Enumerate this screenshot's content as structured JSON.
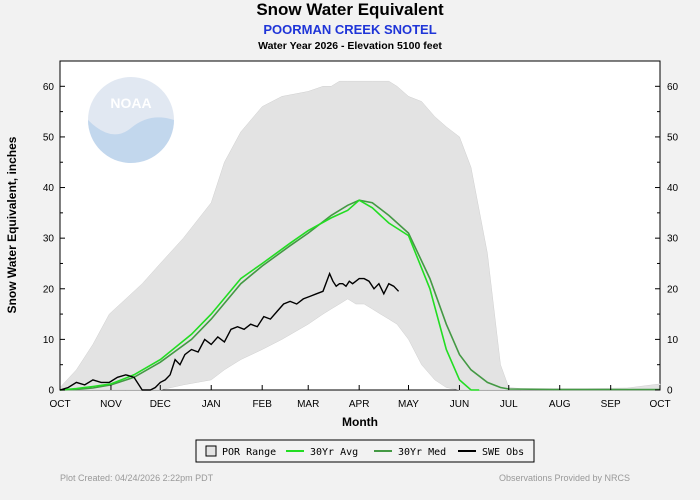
{
  "header": {
    "title": "Snow Water Equivalent",
    "station": "POORMAN CREEK SNOTEL",
    "subtitle": "Water Year 2026 -  Elevation 5100 feet"
  },
  "logo_text": "NOAA",
  "footer": {
    "left": "Plot Created: 04/24/2026 2:22pm PDT",
    "right": "Observations Provided by NRCS"
  },
  "colors": {
    "por_fill": "#e3e3e3",
    "avg": "#22dd22",
    "med": "#449944",
    "obs": "#000000"
  },
  "chart_data": {
    "type": "line",
    "xlabel": "Month",
    "ylabel": "Snow Water Equivalent, inches",
    "ylim": [
      0,
      65
    ],
    "yticks": [
      0,
      10,
      20,
      30,
      40,
      50,
      60
    ],
    "xlim_days": [
      0,
      365
    ],
    "months": [
      "OCT",
      "NOV",
      "DEC",
      "JAN",
      "FEB",
      "MAR",
      "APR",
      "MAY",
      "JUN",
      "JUL",
      "AUG",
      "SEP",
      "OCT"
    ],
    "month_days": [
      0,
      31,
      61,
      92,
      123,
      151,
      182,
      212,
      243,
      273,
      304,
      335,
      365
    ],
    "grid": false,
    "legend_position": "bottom",
    "legend": [
      "POR Range",
      "30Yr Avg",
      "30Yr Med",
      "SWE Obs"
    ],
    "por_range": {
      "days": [
        0,
        10,
        20,
        30,
        40,
        50,
        61,
        75,
        92,
        100,
        110,
        123,
        135,
        151,
        160,
        165,
        170,
        175,
        180,
        185,
        190,
        195,
        200,
        205,
        212,
        220,
        228,
        235,
        243,
        250,
        260,
        268,
        273,
        280,
        300,
        320,
        345,
        365
      ],
      "max": [
        0.5,
        4,
        9,
        15,
        18,
        21,
        25,
        30,
        37,
        45,
        51,
        56,
        58,
        59,
        60,
        60,
        61,
        61,
        61,
        61,
        61,
        61,
        61,
        60,
        58,
        57,
        54,
        52,
        50,
        44,
        27,
        5,
        0.5,
        0.3,
        0.3,
        0.3,
        0.4,
        1.2
      ],
      "min": [
        0,
        0,
        0,
        0,
        0,
        0,
        0,
        1,
        2,
        4,
        6,
        8,
        10,
        13,
        15,
        16,
        17,
        18,
        17,
        17,
        16,
        15,
        14,
        13,
        10,
        5,
        2,
        0.5,
        0,
        0,
        0,
        0,
        0,
        0,
        0,
        0,
        0,
        0
      ]
    },
    "series": [
      {
        "name": "30Yr Avg",
        "x": [
          0,
          10,
          20,
          31,
          45,
          61,
          80,
          92,
          110,
          123,
          140,
          151,
          165,
          175,
          182,
          190,
          200,
          212,
          225,
          235,
          243,
          250,
          255
        ],
        "y": [
          0,
          0.3,
          0.7,
          1.2,
          3,
          6,
          11,
          15,
          22,
          25,
          29,
          31.5,
          34,
          35.5,
          37.5,
          36,
          33,
          30.5,
          20,
          8,
          2,
          0,
          0
        ]
      },
      {
        "name": "30Yr Med",
        "x": [
          0,
          10,
          20,
          31,
          45,
          61,
          80,
          92,
          110,
          123,
          140,
          151,
          165,
          175,
          182,
          190,
          200,
          212,
          225,
          235,
          243,
          250,
          260,
          268,
          273,
          300,
          330,
          365
        ],
        "y": [
          0,
          0.1,
          0.4,
          1,
          2.5,
          5.5,
          10,
          14,
          21,
          24.5,
          28.5,
          31,
          34.5,
          36.5,
          37.5,
          37,
          34.5,
          31,
          22,
          13,
          7,
          4,
          1.5,
          0.5,
          0.2,
          0.1,
          0.1,
          0.1
        ]
      },
      {
        "name": "SWE Obs",
        "x": [
          0,
          5,
          10,
          15,
          20,
          25,
          30,
          35,
          40,
          45,
          48,
          50,
          52,
          55,
          58,
          61,
          64,
          67,
          70,
          73,
          76,
          80,
          84,
          88,
          92,
          96,
          100,
          104,
          108,
          112,
          116,
          120,
          124,
          128,
          132,
          136,
          140,
          144,
          148,
          152,
          156,
          160,
          164,
          166,
          168,
          170,
          172,
          174,
          176,
          178,
          180,
          182,
          185,
          188,
          191,
          194,
          197,
          200,
          203,
          206
        ],
        "y": [
          0,
          0.5,
          1.5,
          1,
          2,
          1.5,
          1.5,
          2.5,
          3,
          2.5,
          1,
          0,
          0,
          0,
          0.5,
          1.5,
          2,
          3,
          6,
          5,
          7,
          8,
          7.5,
          10,
          9,
          10.5,
          9.5,
          12,
          12.5,
          12,
          13,
          12.5,
          14.5,
          14,
          15.5,
          17,
          17.5,
          17,
          18,
          18.5,
          19,
          19.5,
          23,
          21.5,
          20.5,
          21,
          21,
          20.5,
          21.5,
          21,
          21.5,
          22,
          22,
          21.5,
          20,
          21,
          19,
          21,
          20.5,
          19.5
        ]
      }
    ]
  }
}
